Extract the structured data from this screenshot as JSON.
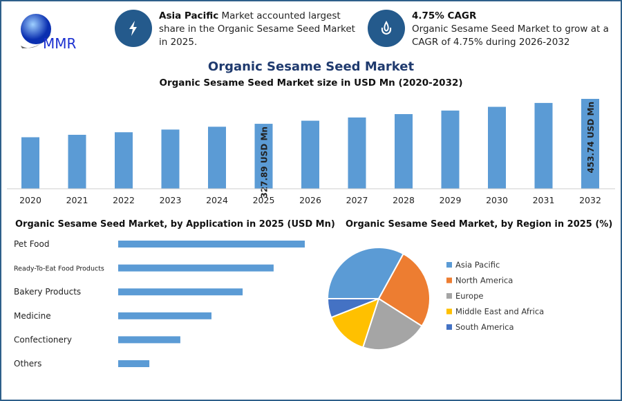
{
  "header": {
    "logo_text": "MMR",
    "info1": {
      "bold": "Asia Pacific",
      "text": " Market accounted largest share in the Organic Sesame Seed Market in 2025.",
      "icon": "lightning-icon"
    },
    "info2": {
      "bold": "4.75% CAGR",
      "text": "Organic Sesame Seed Market to grow at a CAGR of 4.75% during 2026-2032",
      "icon": "drop-hand-icon"
    }
  },
  "main_title": "Organic Sesame Seed Market",
  "colors": {
    "bar": "#5b9bd5",
    "title": "#1f3a6e",
    "border": "#2e5f8a"
  },
  "chart_data": [
    {
      "type": "bar",
      "title": "Organic Sesame Seed Market size in USD Mn (2020-2032)",
      "categories": [
        "2020",
        "2021",
        "2022",
        "2023",
        "2024",
        "2025",
        "2026",
        "2027",
        "2028",
        "2029",
        "2030",
        "2031",
        "2032"
      ],
      "values": [
        259.98,
        272.33,
        285.27,
        298.82,
        313.02,
        327.89,
        343.46,
        359.78,
        376.87,
        394.77,
        413.52,
        433.16,
        453.74
      ],
      "data_labels": {
        "2025": "327.89 USD Mn",
        "2032": "453.74 USD Mn"
      }
    },
    {
      "type": "bar",
      "orientation": "horizontal",
      "title": "Organic Sesame Seed Market, by Application in 2025 (USD Mn)",
      "categories": [
        "Pet Food",
        "Ready-To-Eat Food Products",
        "Bakery Products",
        "Medicine",
        "Confectionery",
        "Others"
      ],
      "values_relative": [
        1.0,
        0.833,
        0.667,
        0.5,
        0.333,
        0.167
      ]
    },
    {
      "type": "pie",
      "title": "Organic Sesame Seed Market, by Region in 2025 (%)",
      "labels": [
        "Asia Pacific",
        "North America",
        "Europe",
        "Middle East and Africa",
        "South America"
      ],
      "values": [
        33,
        26,
        21,
        14,
        6
      ],
      "colors": [
        "#5b9bd5",
        "#ed7d31",
        "#a5a5a5",
        "#ffc000",
        "#4472c4"
      ],
      "legend": "right"
    }
  ]
}
